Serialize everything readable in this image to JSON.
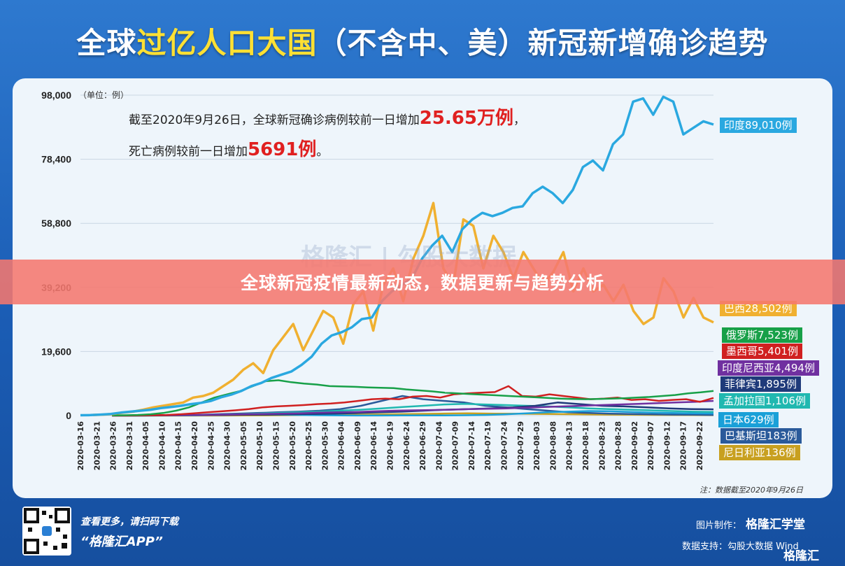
{
  "title": {
    "pre": "全球",
    "highlight": "过亿人口大国",
    "post": "（不含中、美）新冠新增确诊趋势"
  },
  "unit": "（单位：例）",
  "annotation": {
    "line1_pre": "截至2020年9月26日，全球新冠确诊病例较前一日增加",
    "line1_big": "25.65万例",
    "line1_post": "，",
    "line2_pre": "死亡病例较前一日增加",
    "line2_big": "5691例",
    "line2_post": "。"
  },
  "banner": "全球新冠疫情最新动态，数据更新与趋势分析",
  "watermark": "格隆汇 | 勾股大数据",
  "note": "注：数据截至2020年9月26日",
  "footer": {
    "scan1": "查看更多，请扫码下载",
    "scan2": "“格隆汇APP”",
    "made_by": "图片制作：",
    "made_by_brand": "格隆汇学堂",
    "data_support": "数据支持：勾股大数据 Wind",
    "logo": "格隆汇"
  },
  "chart_data": {
    "type": "line",
    "ylim": [
      0,
      98000
    ],
    "yticks": [
      "98,000",
      "78,400",
      "58,800",
      "39,200",
      "19,600",
      "0"
    ],
    "ytick_values": [
      98000,
      78400,
      58800,
      39200,
      19600,
      0
    ],
    "xticks": [
      "2020-03-16",
      "2020-03-21",
      "2020-03-26",
      "2020-03-31",
      "2020-04-05",
      "2020-04-10",
      "2020-04-15",
      "2020-04-20",
      "2020-04-25",
      "2020-04-30",
      "2020-05-05",
      "2020-05-10",
      "2020-05-15",
      "2020-05-20",
      "2020-05-25",
      "2020-05-30",
      "2020-06-04",
      "2020-06-09",
      "2020-06-14",
      "2020-06-19",
      "2020-06-24",
      "2020-06-29",
      "2020-07-04",
      "2020-07-09",
      "2020-07-14",
      "2020-07-19",
      "2020-07-24",
      "2020-07-29",
      "2020-08-03",
      "2020-08-08",
      "2020-08-13",
      "2020-08-18",
      "2020-08-23",
      "2020-08-28",
      "2020-09-02",
      "2020-09-07",
      "2020-09-12",
      "2020-09-17",
      "2020-09-22"
    ],
    "series": [
      {
        "name": "印度89,010例",
        "color": "#2aa8e0",
        "values": [
          100,
          150,
          300,
          500,
          900,
          1200,
          1500,
          1800,
          2300,
          2600,
          3000,
          3500,
          3900,
          4500,
          5600,
          6400,
          7500,
          9000,
          10000,
          11500,
          12500,
          13500,
          15500,
          18000,
          22000,
          24500,
          25500,
          27000,
          29500,
          30000,
          35000,
          38000,
          40000,
          42000,
          48000,
          52000,
          55000,
          50000,
          57000,
          60000,
          62000,
          61000,
          62000,
          63500,
          64000,
          68000,
          70000,
          68000,
          65000,
          69000,
          76000,
          78000,
          75000,
          83000,
          86000,
          96000,
          97000,
          92000,
          97500,
          96000,
          86000,
          88000,
          90000,
          89010
        ]
      },
      {
        "name": "巴西28,502例",
        "color": "#f0b030",
        "values": [
          200,
          300,
          500,
          900,
          1200,
          1800,
          2500,
          3000,
          3500,
          4000,
          5500,
          6000,
          7000,
          9000,
          11000,
          14000,
          16000,
          13000,
          20000,
          24000,
          28000,
          20000,
          26000,
          32000,
          30000,
          22000,
          34000,
          38000,
          26000,
          40000,
          45000,
          35000,
          48000,
          55000,
          65000,
          45000,
          40000,
          60000,
          58000,
          45000,
          55000,
          50000,
          42000,
          50000,
          45000,
          40000,
          44000,
          50000,
          38000,
          45000,
          38000,
          40000,
          35000,
          40000,
          32000,
          28000,
          30000,
          42000,
          38000,
          30000,
          36000,
          30000,
          28502
        ]
      },
      {
        "name": "俄罗斯7,523例",
        "color": "#17a048",
        "values": [
          50,
          100,
          200,
          400,
          800,
          1500,
          2500,
          4000,
          5500,
          6500,
          7500,
          9000,
          10500,
          10800,
          10200,
          9800,
          9500,
          9000,
          8900,
          8800,
          8600,
          8500,
          8400,
          8000,
          7700,
          7400,
          7000,
          6800,
          6600,
          6400,
          6200,
          6000,
          5800,
          5600,
          5400,
          5200,
          5100,
          5000,
          5100,
          5200,
          5300,
          5500,
          5700,
          6000,
          6300,
          6800,
          7100,
          7523
        ]
      },
      {
        "name": "墨西哥5,401例",
        "color": "#d02020",
        "values": [
          0,
          0,
          50,
          100,
          200,
          400,
          700,
          1000,
          1300,
          1600,
          2000,
          2500,
          2800,
          3000,
          3200,
          3500,
          3700,
          4000,
          4500,
          5000,
          5200,
          5000,
          5800,
          6000,
          5500,
          6500,
          6800,
          7000,
          7200,
          9000,
          6000,
          5800,
          6500,
          6000,
          5500,
          5000,
          5200,
          5500,
          4800,
          5000,
          4500,
          4800,
          5000,
          4200,
          5401
        ]
      },
      {
        "name": "印度尼西亚4,494例",
        "color": "#7030a0",
        "values": [
          0,
          0,
          50,
          100,
          150,
          200,
          300,
          400,
          500,
          600,
          700,
          900,
          1000,
          1100,
          1300,
          1500,
          1600,
          1700,
          1800,
          2000,
          2100,
          2200,
          2400,
          2600,
          2800,
          3000,
          3200,
          3400,
          3600,
          3800,
          4000,
          4200,
          4494
        ]
      },
      {
        "name": "菲律宾1,895例",
        "color": "#1f3a7a",
        "values": [
          0,
          0,
          50,
          100,
          150,
          200,
          250,
          300,
          400,
          500,
          600,
          800,
          1000,
          1200,
          1500,
          1800,
          2000,
          2200,
          2500,
          3000,
          4000,
          3500,
          3000,
          2800,
          2500,
          2200,
          2000,
          1895
        ]
      },
      {
        "name": "孟加拉国1,106例",
        "color": "#20b8b0",
        "values": [
          0,
          0,
          10,
          50,
          100,
          200,
          400,
          600,
          800,
          1000,
          1200,
          1500,
          1800,
          2200,
          2600,
          3000,
          3400,
          3600,
          3400,
          3200,
          3000,
          2800,
          2500,
          2200,
          2000,
          1800,
          1600,
          1400,
          1200,
          1106
        ]
      },
      {
        "name": "日本629例",
        "color": "#1aa0d8",
        "values": [
          20,
          30,
          50,
          80,
          100,
          200,
          300,
          400,
          300,
          200,
          100,
          50,
          30,
          30,
          40,
          50,
          60,
          100,
          200,
          400,
          700,
          1000,
          1200,
          1400,
          1300,
          1100,
          900,
          800,
          700,
          629
        ]
      },
      {
        "name": "巴基斯坦183例",
        "color": "#2a5a9a",
        "values": [
          0,
          20,
          50,
          100,
          200,
          400,
          600,
          800,
          1000,
          1200,
          1500,
          2000,
          3000,
          4500,
          6000,
          5000,
          4500,
          4000,
          3000,
          2500,
          2000,
          1500,
          1000,
          800,
          600,
          500,
          400,
          300,
          250,
          183
        ]
      },
      {
        "name": "尼日利亚136例",
        "color": "#c8a020",
        "values": [
          0,
          0,
          0,
          10,
          20,
          50,
          100,
          150,
          200,
          300,
          400,
          500,
          600,
          700,
          600,
          550,
          500,
          400,
          300,
          250,
          200,
          150,
          136
        ]
      }
    ]
  }
}
